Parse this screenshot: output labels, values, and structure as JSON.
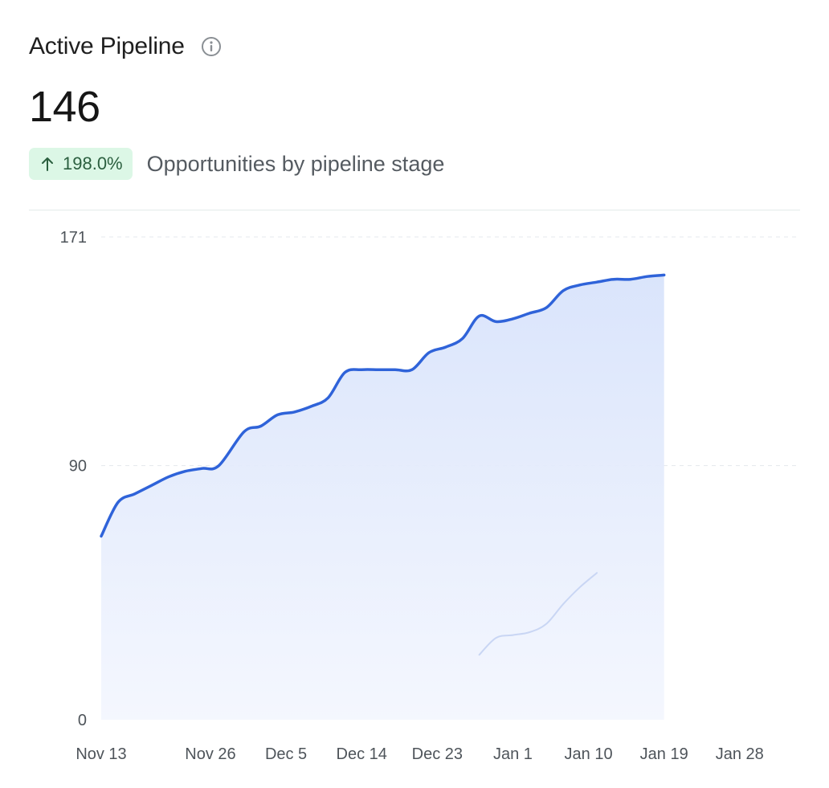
{
  "card": {
    "title": "Active Pipeline",
    "value": "146",
    "change": "198.0%",
    "subtitle": "Opportunities by pipeline stage",
    "accent_color": "#2f63d9",
    "badge_bg": "#dcf7e6",
    "badge_text_color": "#2b5f3f",
    "icons": {
      "info": "info-icon",
      "trend": "arrow-up-icon"
    }
  },
  "chart_data": {
    "type": "area",
    "title": "",
    "xlabel": "",
    "ylabel": "",
    "ylim": [
      0,
      171
    ],
    "yticks": [
      0,
      90,
      171
    ],
    "x_tick_labels": [
      "Nov 13",
      "Nov 26",
      "Dec 5",
      "Dec 14",
      "Dec 23",
      "Jan 1",
      "Jan 10",
      "Jan 19",
      "Jan 28"
    ],
    "x_start": "Nov 13",
    "x_end": "Feb 4",
    "grid": "horizontal dashed",
    "series": [
      {
        "color": "#2f63d9",
        "fill": true,
        "points": [
          [
            "Nov 13",
            65
          ],
          [
            "Nov 15",
            77
          ],
          [
            "Nov 17",
            80
          ],
          [
            "Nov 19",
            83
          ],
          [
            "Nov 21",
            86
          ],
          [
            "Nov 23",
            88
          ],
          [
            "Nov 25",
            89
          ],
          [
            "Nov 27",
            90
          ],
          [
            "Nov 30",
            102
          ],
          [
            "Dec 2",
            104
          ],
          [
            "Dec 4",
            108
          ],
          [
            "Dec 6",
            109
          ],
          [
            "Dec 8",
            111
          ],
          [
            "Dec 10",
            114
          ],
          [
            "Dec 12",
            123
          ],
          [
            "Dec 14",
            124
          ],
          [
            "Dec 16",
            124
          ],
          [
            "Dec 18",
            124
          ],
          [
            "Dec 20",
            124
          ],
          [
            "Dec 22",
            130
          ],
          [
            "Dec 24",
            132
          ],
          [
            "Dec 26",
            135
          ],
          [
            "Dec 28",
            143
          ],
          [
            "Dec 30",
            141
          ],
          [
            "Jan 1",
            142
          ],
          [
            "Jan 3",
            144
          ],
          [
            "Jan 5",
            146
          ],
          [
            "Jan 7",
            152
          ],
          [
            "Jan 9",
            154
          ],
          [
            "Jan 11",
            155
          ],
          [
            "Jan 13",
            156
          ],
          [
            "Jan 15",
            156
          ],
          [
            "Jan 17",
            157
          ],
          [
            "Jan 19",
            157.5
          ]
        ]
      },
      {
        "color": "#c9d6f4",
        "fill": false,
        "points": [
          [
            "Dec 28",
            23
          ],
          [
            "Dec 30",
            29
          ],
          [
            "Jan 1",
            30
          ],
          [
            "Jan 3",
            31
          ],
          [
            "Jan 5",
            34
          ],
          [
            "Jan 7",
            41
          ],
          [
            "Jan 9",
            47
          ],
          [
            "Jan 11",
            52
          ]
        ]
      }
    ]
  }
}
